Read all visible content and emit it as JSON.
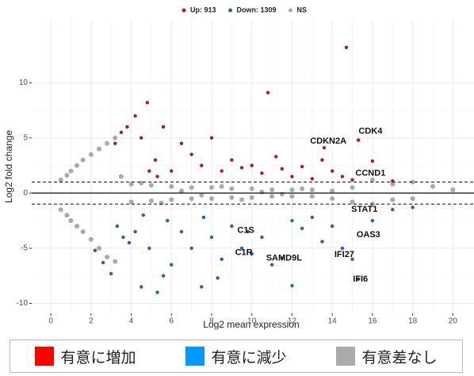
{
  "chart_data": {
    "type": "scatter",
    "x_label": "Log2 mean expression",
    "y_label": "Log2 fold change",
    "xlim": [
      -0.95,
      21.05
    ],
    "ylim": [
      -10.9,
      15.7
    ],
    "xticks": [
      0,
      2,
      4,
      6,
      8,
      10,
      12,
      14,
      16,
      18,
      20
    ],
    "yticks": [
      -10,
      -5,
      0,
      5,
      10
    ],
    "grid": true,
    "legend_position": "top",
    "hlines": [
      {
        "y": 0,
        "style": "solid"
      },
      {
        "y": 1,
        "style": "dashed"
      },
      {
        "y": -1,
        "style": "dashed"
      }
    ],
    "series": [
      {
        "name": "Up: 913",
        "color": "#b2182b",
        "x": [
          3.2,
          3.5,
          3.8,
          4.2,
          4.5,
          4.8,
          5.2,
          5.6,
          6,
          6.5,
          7,
          7.5,
          8,
          8.5,
          9,
          9.5,
          10,
          10.5,
          10.8,
          11.2,
          11.5,
          12,
          12.5,
          13,
          13.5,
          14,
          14.5,
          15,
          15.3,
          16,
          17,
          13.6,
          14.7,
          4.9,
          5.3
        ],
        "values": [
          4.5,
          5.5,
          6,
          7,
          5,
          8.2,
          3,
          6,
          2,
          4.5,
          3.5,
          2.5,
          5,
          2,
          3,
          2.3,
          2.5,
          1.8,
          9.1,
          3.3,
          2.2,
          1.5,
          2.4,
          1.3,
          3,
          2,
          1.5,
          1.2,
          4.8,
          2.9,
          1.1,
          4.1,
          13.2,
          2,
          1.5
        ]
      },
      {
        "name": "Down: 1309",
        "color": "#2166ac",
        "x": [
          2.2,
          2.6,
          3.0,
          3.3,
          3.6,
          3.9,
          4.2,
          4.5,
          4.9,
          5.3,
          5.6,
          6,
          6.5,
          7,
          7.5,
          8,
          8.5,
          9,
          9.5,
          9.8,
          10,
          10.5,
          11,
          11.5,
          12,
          12,
          12.5,
          13,
          13.5,
          14,
          14.5,
          15,
          15.3,
          16,
          17,
          18,
          5.8,
          7.6,
          4.6,
          8.3
        ],
        "values": [
          -5.2,
          -6.3,
          -7.3,
          -3,
          -4,
          -4.5,
          -3.5,
          -8.5,
          -5,
          -9,
          -7.5,
          -6.5,
          -3.5,
          -5,
          -8.5,
          -4,
          -6,
          -3,
          -5,
          -3.5,
          -5.5,
          -4,
          -6.5,
          -5.9,
          -8.4,
          -2.5,
          -3.2,
          -2.2,
          -4.4,
          -3,
          -5,
          -6,
          -7.8,
          -2.5,
          -1.5,
          -1.3,
          -2.5,
          -2.2,
          -2,
          -7.7
        ]
      },
      {
        "name": "NS",
        "color": "#aaaaaa",
        "x": [
          0.5,
          0.8,
          1.0,
          1.3,
          1.6,
          2.0,
          2.4,
          2.8,
          3.2,
          0.5,
          0.8,
          1.0,
          1.3,
          1.6,
          2.0,
          2.4,
          2.8,
          3.2,
          4,
          5,
          6,
          7,
          8,
          9,
          10,
          11,
          12,
          13,
          14,
          15,
          16,
          17,
          18,
          19,
          20,
          4,
          5,
          6,
          7,
          8,
          9,
          10,
          11,
          12,
          13,
          14,
          15,
          16,
          17,
          18,
          3.5,
          4.5,
          5.5,
          6.5,
          7.5,
          8.5,
          9.5,
          10.5,
          11.5,
          12.5
        ],
        "values": [
          1.2,
          1.6,
          2.0,
          2.5,
          3.0,
          3.5,
          4.0,
          4.5,
          5.0,
          -1.5,
          -2.0,
          -2.5,
          -3.0,
          -3.5,
          -4.2,
          -5.0,
          -5.8,
          -6.2,
          0.8,
          0.7,
          0.6,
          0.5,
          0.5,
          0.4,
          0.4,
          0.3,
          0.3,
          0.3,
          0.2,
          0.5,
          1.2,
          0.8,
          1.0,
          0.6,
          0.3,
          -0.8,
          -0.7,
          -0.6,
          -0.5,
          -0.5,
          -0.4,
          -0.4,
          -0.3,
          -0.3,
          -0.3,
          -0.5,
          -0.8,
          -1.0,
          -0.6,
          -0.5,
          1.5,
          0.9,
          -0.9,
          0.2,
          -0.2,
          0.6,
          -0.6,
          0.1,
          -0.1,
          0.4
        ]
      }
    ],
    "annotations": [
      {
        "text": "CDK4",
        "x": 15.9,
        "y": 5.6
      },
      {
        "text": "CDKN2A",
        "x": 13.8,
        "y": 4.7
      },
      {
        "text": "CCND1",
        "x": 15.9,
        "y": 1.8
      },
      {
        "text": "STAT1",
        "x": 15.6,
        "y": -1.5
      },
      {
        "text": "C1S",
        "x": 9.7,
        "y": -3.4
      },
      {
        "text": "OAS3",
        "x": 15.8,
        "y": -3.8
      },
      {
        "text": "C1R",
        "x": 9.6,
        "y": -5.4
      },
      {
        "text": "IFI27",
        "x": 14.6,
        "y": -5.6
      },
      {
        "text": "SAMD9L",
        "x": 11.6,
        "y": -5.9
      },
      {
        "text": "IFI6",
        "x": 15.4,
        "y": -7.8
      }
    ]
  },
  "legend_panel": {
    "items": [
      {
        "label": "有意に増加",
        "color": "#ff0000"
      },
      {
        "label": "有意に減少",
        "color": "#0099ff"
      },
      {
        "label": "有意差なし",
        "color": "#aaaaaa"
      }
    ]
  }
}
